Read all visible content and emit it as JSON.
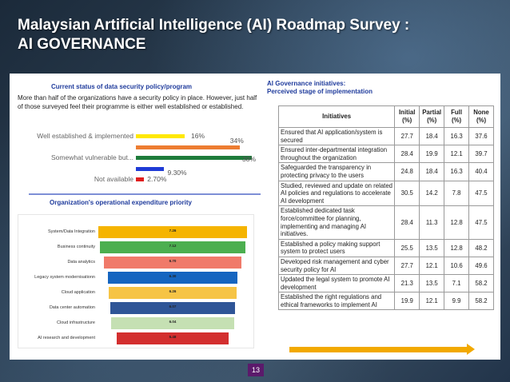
{
  "slide": {
    "title_line1": "Malaysian Artificial Intelligence (AI) Roadmap Survey :",
    "title_line2": "AI GOVERNANCE",
    "page_number": "13"
  },
  "left": {
    "security_title": "Current status of data security policy/program",
    "security_desc": "More than half of the organizations have a security policy in place. However, just half of those surveyed feel their programme is either well established or established.",
    "expenditure_title": "Organization's operational expenditure priority"
  },
  "right": {
    "title_line1": "AI Governance initiatives:",
    "title_line2": "Perceived stage of implementation"
  },
  "chart_data": [
    {
      "type": "bar",
      "orientation": "horizontal",
      "title": "Current status of data security policy/program",
      "categories": [
        "Well established & implemented",
        "",
        "Somewhat vulnerable but...",
        "",
        "Not available"
      ],
      "values": [
        16,
        34,
        38,
        9.3,
        2.7
      ],
      "value_labels": [
        "16%",
        "34%",
        "38%",
        "9.30%",
        "2.70%"
      ],
      "colors": [
        "#ffe800",
        "#ed7d31",
        "#1e7b3a",
        "#1f3bd6",
        "#e01e1e"
      ],
      "xlim": [
        0,
        38
      ]
    },
    {
      "type": "bar",
      "orientation": "horizontal-funnel",
      "title": "Organization's operational expenditure priority",
      "categories": [
        "System/Data Integration",
        "Business continuity",
        "Data analytics",
        "Legacy system modernisationn",
        "Cloud application",
        "Data center automation",
        "Cloud infrastructure",
        "AI research and development"
      ],
      "values": [
        7.26,
        7.12,
        6.7,
        6.3,
        6.26,
        6.07,
        6.04,
        5.48
      ],
      "value_labels": [
        "7.26",
        "7.12",
        "6.70",
        "6.30",
        "6.26",
        "6.07",
        "6.04",
        "5.48"
      ],
      "colors": [
        "#f5b400",
        "#4caf50",
        "#f07a6a",
        "#1565c0",
        "#f6c445",
        "#2f5597",
        "#c5e0b3",
        "#d32f2f"
      ],
      "xlim": [
        0,
        7.26
      ]
    },
    {
      "type": "table",
      "title": "AI Governance initiatives: Perceived stage of implementation",
      "columns": [
        "Initiatives",
        "Initial (%)",
        "Partial (%)",
        "Full (%)",
        "None (%)"
      ],
      "rows": [
        [
          "Ensured that AI application/system is secured",
          "27.7",
          "18.4",
          "16.3",
          "37.6"
        ],
        [
          "Ensured inter-departmental integration throughout the organization",
          "28.4",
          "19.9",
          "12.1",
          "39.7"
        ],
        [
          "Safeguarded the transparency in protecting privacy to the users",
          "24.8",
          "18.4",
          "16.3",
          "40.4"
        ],
        [
          "Studied, reviewed and update on related AI policies and regulations to accelerate AI development",
          "30.5",
          "14.2",
          "7.8",
          "47.5"
        ],
        [
          "Established dedicated task force/committee for planning, implementing and managing AI initiatives.",
          "28.4",
          "11.3",
          "12.8",
          "47.5"
        ],
        [
          "Established a policy making support system to protect users",
          "25.5",
          "13.5",
          "12.8",
          "48.2"
        ],
        [
          "Developed risk management and cyber security policy for AI",
          "27.7",
          "12.1",
          "10.6",
          "49.6"
        ],
        [
          "Updated the legal system to promote AI development",
          "21.3",
          "13.5",
          "7.1",
          "58.2"
        ],
        [
          "Established the right regulations and ethical frameworks to implement AI",
          "19.9",
          "12.1",
          "9.9",
          "58.2"
        ]
      ]
    }
  ]
}
